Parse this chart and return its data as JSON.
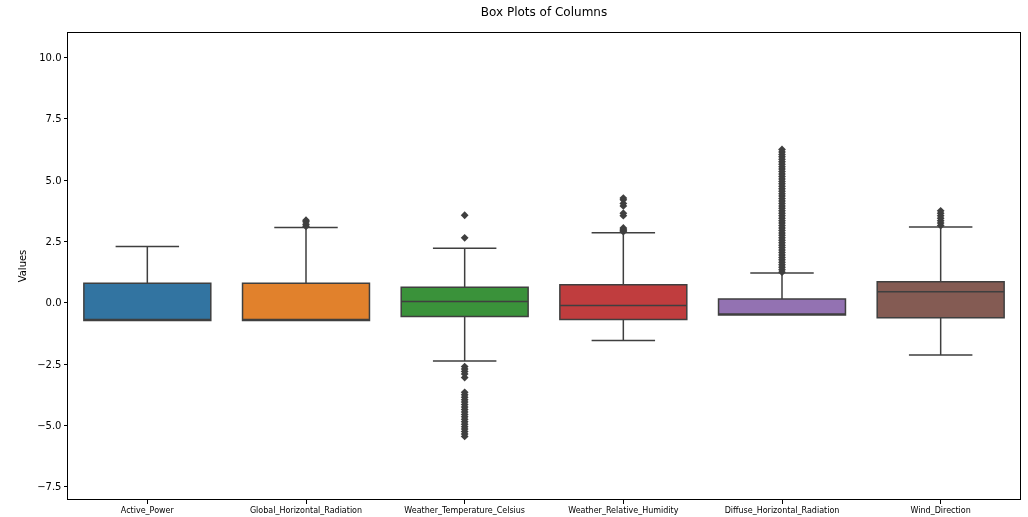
{
  "chart_data": {
    "type": "box",
    "title": "Box Plots of Columns",
    "ylabel": "Values",
    "categories": [
      "Active_Power",
      "Global_Horizontal_Radiation",
      "Weather_Temperature_Celsius",
      "Weather_Relative_Humidity",
      "Diffuse_Horizontal_Radiation",
      "Wind_Direction"
    ],
    "colors": [
      "#3274a1",
      "#e1812c",
      "#3a923a",
      "#c03d3e",
      "#9372b2",
      "#845b53"
    ],
    "marker": "diamond",
    "ylim": [
      -8,
      11
    ],
    "yticks": [
      {
        "value": -7.5,
        "label": "−7.5"
      },
      {
        "value": -5,
        "label": "−5.0"
      },
      {
        "value": -2.5,
        "label": "−2.5"
      },
      {
        "value": 0,
        "label": "0.0"
      },
      {
        "value": 2.5,
        "label": "2.5"
      },
      {
        "value": 5,
        "label": "5.0"
      },
      {
        "value": 7.5,
        "label": "7.5"
      },
      {
        "value": 10,
        "label": "10.0"
      }
    ],
    "boxes": [
      {
        "low": -0.72,
        "q1": -0.72,
        "median": -0.72,
        "q3": 0.8,
        "high": 2.29
      },
      {
        "low": -0.72,
        "q1": -0.72,
        "median": -0.72,
        "q3": 0.8,
        "high": 3.07,
        "outliers": [
          3.12,
          3.2,
          3.3,
          3.37
        ]
      },
      {
        "low": -2.37,
        "q1": -0.56,
        "median": 0.05,
        "q3": 0.63,
        "high": 2.22,
        "outliers": [
          2.65,
          3.57,
          -2.6,
          -2.7,
          -2.8,
          -2.9,
          -3.05,
          -3.65,
          -3.75,
          -3.85,
          -3.95,
          -4.05,
          -4.15,
          -4.25,
          -4.35,
          -4.45,
          -4.55,
          -4.65,
          -4.75,
          -4.85,
          -4.95,
          -5.05,
          -5.15,
          -5.25,
          -5.35,
          -5.45
        ]
      },
      {
        "low": -1.54,
        "q1": -0.68,
        "median": -0.11,
        "q3": 0.74,
        "high": 2.86,
        "outliers": [
          2.9,
          2.95,
          3.0,
          3.05,
          3.55,
          3.65,
          3.95,
          4.05,
          4.2,
          4.27
        ]
      },
      {
        "low": -0.5,
        "q1": -0.5,
        "median": -0.5,
        "q3": 0.15,
        "high": 1.21,
        "outliers": [
          1.25,
          1.35,
          1.45,
          1.55,
          1.65,
          1.75,
          1.85,
          1.95,
          2.05,
          2.15,
          2.25,
          2.35,
          2.45,
          2.55,
          2.65,
          2.75,
          2.85,
          2.95,
          3.05,
          3.15,
          3.25,
          3.35,
          3.45,
          3.55,
          3.65,
          3.75,
          3.85,
          3.95,
          4.05,
          4.15,
          4.25,
          4.35,
          4.45,
          4.55,
          4.65,
          4.75,
          4.85,
          4.95,
          5.05,
          5.15,
          5.25,
          5.35,
          5.45,
          5.55,
          5.65,
          5.75,
          5.85,
          5.95,
          6.05,
          6.15,
          6.25
        ]
      },
      {
        "low": -2.13,
        "q1": -0.61,
        "median": 0.45,
        "q3": 0.86,
        "high": 3.09,
        "outliers": [
          3.15,
          3.25,
          3.35,
          3.45,
          3.55,
          3.65,
          3.75
        ]
      }
    ]
  }
}
